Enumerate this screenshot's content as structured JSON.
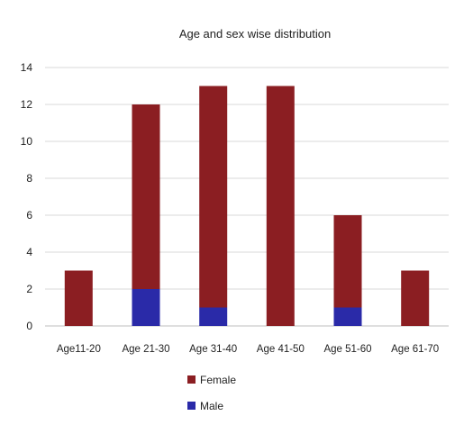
{
  "chart_data": {
    "type": "bar",
    "stacked": true,
    "title": "Age and sex wise distribution",
    "xlabel": "",
    "ylabel": "",
    "categories": [
      "Age11-20",
      "Age 21-30",
      "Age 31-40",
      "Age 41-50",
      "Age 51-60",
      "Age 61-70"
    ],
    "series": [
      {
        "name": "Male",
        "values": [
          0,
          2,
          1,
          0,
          1,
          0
        ],
        "color": "#2a2aa8"
      },
      {
        "name": "Female",
        "values": [
          3,
          10,
          12,
          13,
          5,
          3
        ],
        "color": "#8b1e22"
      }
    ],
    "ylim": [
      0,
      14
    ],
    "yticks": [
      0,
      2,
      4,
      6,
      8,
      10,
      12,
      14
    ],
    "grid": true,
    "legend_placement": "bottom",
    "legend_order": [
      "Female",
      "Male"
    ]
  }
}
